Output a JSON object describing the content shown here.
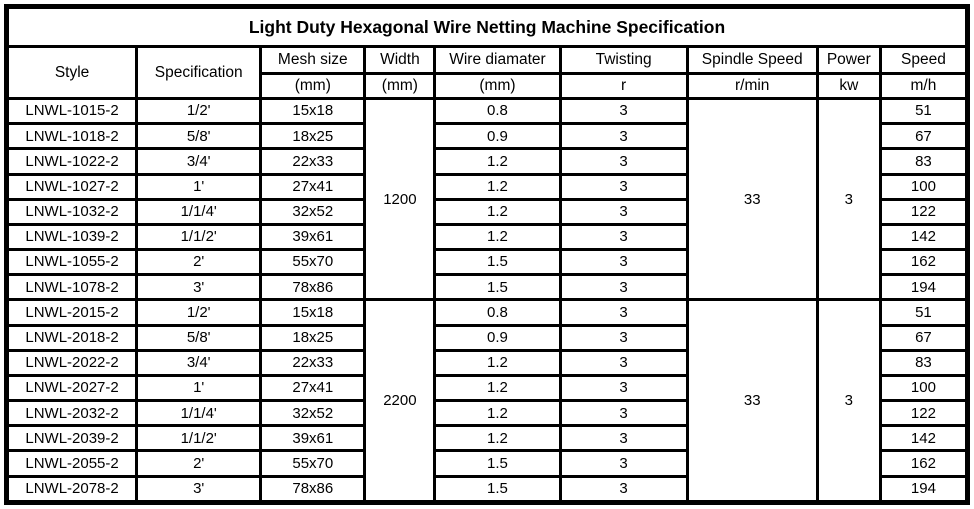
{
  "title": "Light Duty Hexagonal Wire Netting Machine Specification",
  "colors": {
    "border": "#000000",
    "background": "#ffffff",
    "text": "#000000"
  },
  "columns": [
    {
      "name": "Style",
      "unit": ""
    },
    {
      "name": "Specification",
      "unit": ""
    },
    {
      "name": "Mesh size",
      "unit": "(mm)"
    },
    {
      "name": "Width",
      "unit": "(mm)"
    },
    {
      "name": "Wire diamater",
      "unit": "(mm)"
    },
    {
      "name": "Twisting",
      "unit": "r"
    },
    {
      "name": "Spindle Speed",
      "unit": "r/min"
    },
    {
      "name": "Power",
      "unit": "kw"
    },
    {
      "name": "Speed",
      "unit": "m/h"
    }
  ],
  "groups": [
    {
      "width_mm": "1200",
      "spindle_speed": "33",
      "power_kw": "3",
      "rows": [
        {
          "style": "LNWL-1015-2",
          "specification": "1/2'",
          "mesh_size": "15x18",
          "wire_diameter": "0.8",
          "twisting": "3",
          "speed": "51"
        },
        {
          "style": "LNWL-1018-2",
          "specification": "5/8'",
          "mesh_size": "18x25",
          "wire_diameter": "0.9",
          "twisting": "3",
          "speed": "67"
        },
        {
          "style": "LNWL-1022-2",
          "specification": "3/4'",
          "mesh_size": "22x33",
          "wire_diameter": "1.2",
          "twisting": "3",
          "speed": "83"
        },
        {
          "style": "LNWL-1027-2",
          "specification": "1'",
          "mesh_size": "27x41",
          "wire_diameter": "1.2",
          "twisting": "3",
          "speed": "100"
        },
        {
          "style": "LNWL-1032-2",
          "specification": "1/1/4'",
          "mesh_size": "32x52",
          "wire_diameter": "1.2",
          "twisting": "3",
          "speed": "122"
        },
        {
          "style": "LNWL-1039-2",
          "specification": "1/1/2'",
          "mesh_size": "39x61",
          "wire_diameter": "1.2",
          "twisting": "3",
          "speed": "142"
        },
        {
          "style": "LNWL-1055-2",
          "specification": "2'",
          "mesh_size": "55x70",
          "wire_diameter": "1.5",
          "twisting": "3",
          "speed": "162"
        },
        {
          "style": "LNWL-1078-2",
          "specification": "3'",
          "mesh_size": "78x86",
          "wire_diameter": "1.5",
          "twisting": "3",
          "speed": "194"
        }
      ]
    },
    {
      "width_mm": "2200",
      "spindle_speed": "33",
      "power_kw": "3",
      "rows": [
        {
          "style": "LNWL-2015-2",
          "specification": "1/2'",
          "mesh_size": "15x18",
          "wire_diameter": "0.8",
          "twisting": "3",
          "speed": "51"
        },
        {
          "style": "LNWL-2018-2",
          "specification": "5/8'",
          "mesh_size": "18x25",
          "wire_diameter": "0.9",
          "twisting": "3",
          "speed": "67"
        },
        {
          "style": "LNWL-2022-2",
          "specification": "3/4'",
          "mesh_size": "22x33",
          "wire_diameter": "1.2",
          "twisting": "3",
          "speed": "83"
        },
        {
          "style": "LNWL-2027-2",
          "specification": "1'",
          "mesh_size": "27x41",
          "wire_diameter": "1.2",
          "twisting": "3",
          "speed": "100"
        },
        {
          "style": "LNWL-2032-2",
          "specification": "1/1/4'",
          "mesh_size": "32x52",
          "wire_diameter": "1.2",
          "twisting": "3",
          "speed": "122"
        },
        {
          "style": "LNWL-2039-2",
          "specification": "1/1/2'",
          "mesh_size": "39x61",
          "wire_diameter": "1.2",
          "twisting": "3",
          "speed": "142"
        },
        {
          "style": "LNWL-2055-2",
          "specification": "2'",
          "mesh_size": "55x70",
          "wire_diameter": "1.5",
          "twisting": "3",
          "speed": "162"
        },
        {
          "style": "LNWL-2078-2",
          "specification": "3'",
          "mesh_size": "78x86",
          "wire_diameter": "1.5",
          "twisting": "3",
          "speed": "194"
        }
      ]
    }
  ]
}
